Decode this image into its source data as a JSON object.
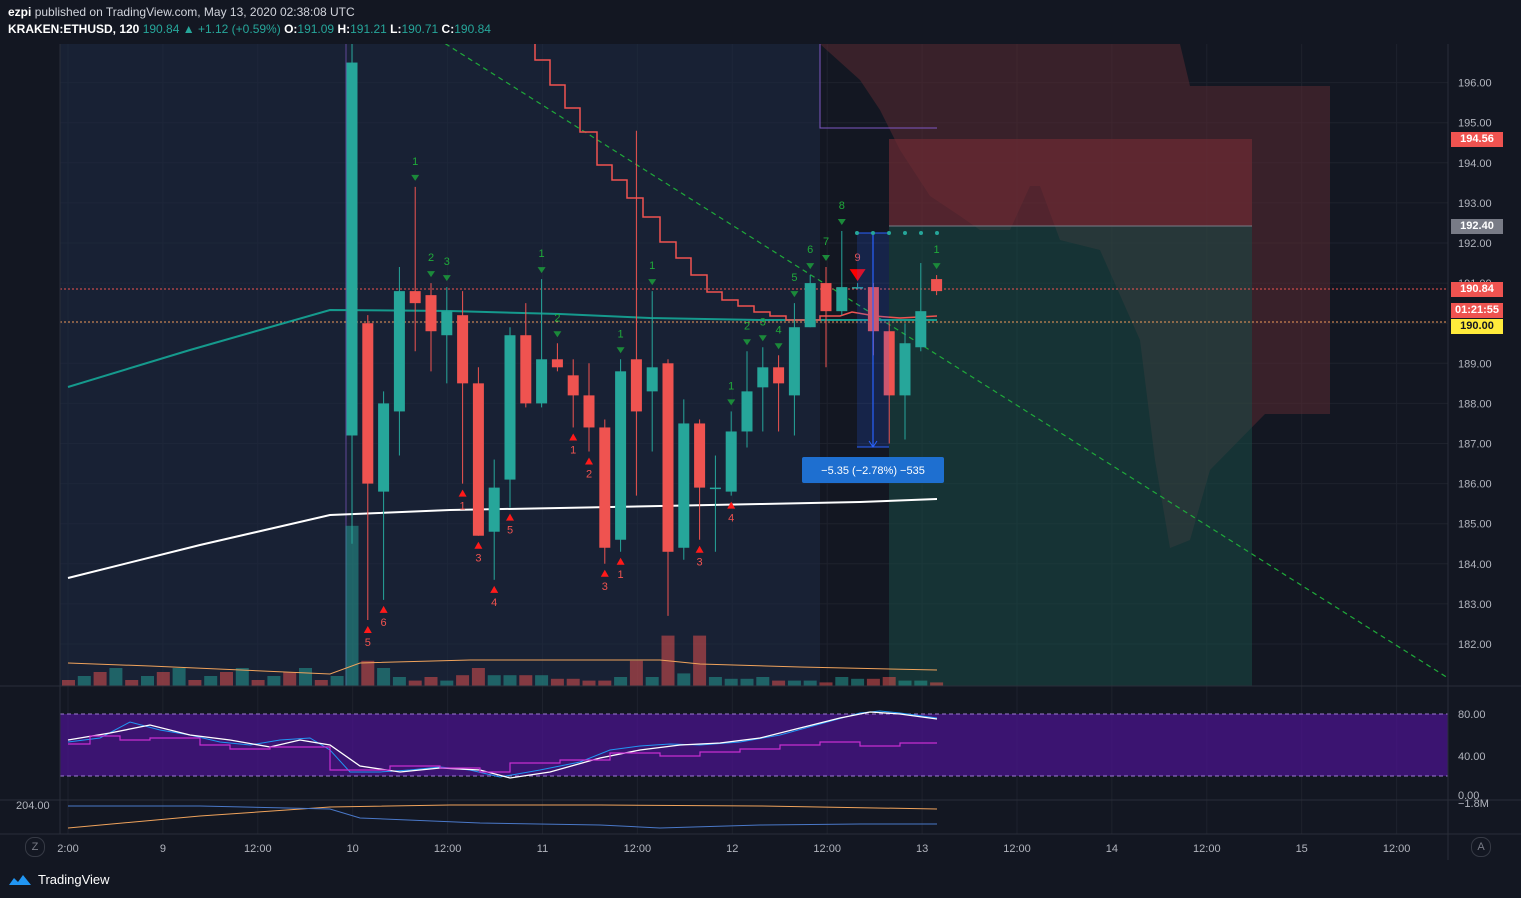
{
  "header": {
    "publisher": "ezpi",
    "published_text": "published on TradingView.com, May 13, 2020 02:38:08 UTC",
    "symbol": "KRAKEN:ETHUSD, 120",
    "last": "190.84",
    "change": "+1.12 (+0.59%)",
    "open_label": "O:",
    "open": "191.09",
    "high_label": "H:",
    "high": "191.21",
    "low_label": "L:",
    "low": "190.71",
    "close_label": "C:",
    "close": "190.84"
  },
  "price_tags": {
    "stop": "194.56",
    "target_line": "192.40",
    "last": "190.84",
    "countdown": "01:21:55",
    "level": "190.00"
  },
  "measure_label": "−5.35 (−2.78%) −535",
  "footer": {
    "brand": "TradingView",
    "left_btn": "Z",
    "right_btn": "A"
  },
  "colors": {
    "bull": "#26a69a",
    "bear": "#ef5350",
    "background": "#131722",
    "rsi_fill": "#4a148c"
  },
  "chart_data": [
    {
      "type": "candlestick",
      "symbol": "KRAKEN:ETHUSD",
      "interval": "120",
      "y_ticks": [
        "182.00",
        "183.00",
        "184.00",
        "185.00",
        "186.00",
        "187.00",
        "188.00",
        "189.00",
        "190.00",
        "191.00",
        "192.00",
        "193.00",
        "194.00",
        "195.00",
        "196.00"
      ],
      "x_ticks": [
        "2:00",
        "9",
        "12:00",
        "10",
        "12:00",
        "11",
        "12:00",
        "12",
        "12:00",
        "13",
        "12:00",
        "14",
        "12:00",
        "15",
        "12:00"
      ],
      "ylim": [
        181.0,
        196.9
      ],
      "candles": [
        {
          "o": 187.2,
          "h": 205.0,
          "l": 184.5,
          "c": 196.5
        },
        {
          "o": 190.0,
          "h": 190.2,
          "l": 182.6,
          "c": 186.0
        },
        {
          "o": 185.8,
          "h": 188.3,
          "l": 183.1,
          "c": 188.0
        },
        {
          "o": 187.8,
          "h": 191.4,
          "l": 186.7,
          "c": 190.8
        },
        {
          "o": 190.8,
          "h": 193.4,
          "l": 189.3,
          "c": 190.5
        },
        {
          "o": 190.7,
          "h": 191.0,
          "l": 188.8,
          "c": 189.8
        },
        {
          "o": 189.7,
          "h": 190.9,
          "l": 188.5,
          "c": 190.3
        },
        {
          "o": 190.2,
          "h": 190.8,
          "l": 186.0,
          "c": 188.5
        },
        {
          "o": 188.5,
          "h": 188.9,
          "l": 184.7,
          "c": 184.7
        },
        {
          "o": 184.8,
          "h": 186.6,
          "l": 183.6,
          "c": 185.9
        },
        {
          "o": 186.1,
          "h": 189.9,
          "l": 185.4,
          "c": 189.7
        },
        {
          "o": 189.7,
          "h": 190.5,
          "l": 187.9,
          "c": 188.0
        },
        {
          "o": 188.0,
          "h": 191.1,
          "l": 187.9,
          "c": 189.1
        },
        {
          "o": 189.1,
          "h": 189.5,
          "l": 188.8,
          "c": 188.9
        },
        {
          "o": 188.7,
          "h": 189.1,
          "l": 187.4,
          "c": 188.2
        },
        {
          "o": 188.2,
          "h": 189.0,
          "l": 186.8,
          "c": 187.4
        },
        {
          "o": 187.4,
          "h": 187.6,
          "l": 184.0,
          "c": 184.4
        },
        {
          "o": 184.6,
          "h": 189.1,
          "l": 184.3,
          "c": 188.8
        },
        {
          "o": 189.1,
          "h": 194.8,
          "l": 185.7,
          "c": 187.8
        },
        {
          "o": 188.3,
          "h": 190.8,
          "l": 186.8,
          "c": 188.9
        },
        {
          "o": 189.0,
          "h": 189.1,
          "l": 182.7,
          "c": 184.3
        },
        {
          "o": 184.4,
          "h": 188.1,
          "l": 184.1,
          "c": 187.5
        },
        {
          "o": 187.5,
          "h": 187.6,
          "l": 184.6,
          "c": 185.9
        },
        {
          "o": 185.9,
          "h": 186.7,
          "l": 184.3,
          "c": 185.9
        },
        {
          "o": 185.8,
          "h": 187.8,
          "l": 185.7,
          "c": 187.3
        },
        {
          "o": 187.3,
          "h": 189.3,
          "l": 186.9,
          "c": 188.3
        },
        {
          "o": 188.4,
          "h": 189.4,
          "l": 187.3,
          "c": 188.9
        },
        {
          "o": 188.9,
          "h": 189.2,
          "l": 187.3,
          "c": 188.5
        },
        {
          "o": 188.2,
          "h": 190.5,
          "l": 187.2,
          "c": 189.9
        },
        {
          "o": 189.9,
          "h": 191.2,
          "l": 189.9,
          "c": 191.0
        },
        {
          "o": 191.0,
          "h": 191.4,
          "l": 188.9,
          "c": 190.3
        },
        {
          "o": 190.3,
          "h": 192.3,
          "l": 190.2,
          "c": 190.9
        },
        {
          "o": 190.9,
          "h": 191.0,
          "l": 190.9,
          "c": 190.9
        },
        {
          "o": 190.9,
          "h": 191.0,
          "l": 189.2,
          "c": 189.8
        },
        {
          "o": 189.8,
          "h": 190.0,
          "l": 187.0,
          "c": 188.2
        },
        {
          "o": 188.2,
          "h": 190.0,
          "l": 187.1,
          "c": 189.5
        },
        {
          "o": 189.4,
          "h": 191.5,
          "l": 189.3,
          "c": 190.3
        },
        {
          "o": 191.1,
          "h": 191.2,
          "l": 190.7,
          "c": 190.8
        }
      ],
      "volume": [
        8.9,
        1.4,
        1.0,
        0.5,
        0.3,
        0.5,
        0.3,
        0.6,
        1.0,
        0.6,
        0.6,
        0.6,
        0.6,
        0.4,
        0.4,
        0.3,
        0.3,
        0.5,
        1.4,
        0.5,
        2.8,
        0.7,
        2.8,
        0.5,
        0.4,
        0.4,
        0.5,
        0.3,
        0.3,
        0.3,
        0.2,
        0.5,
        0.4,
        0.4,
        0.5,
        0.3,
        0.3,
        0.2
      ],
      "td_sequential_up": [
        "1",
        "2",
        "3",
        "1",
        "2",
        "1",
        "1",
        "1",
        "2",
        "3",
        "4",
        "5",
        "6",
        "7",
        "8",
        "9",
        "1"
      ],
      "td_sequential_down": [
        "5",
        "6",
        "1",
        "3",
        "4",
        "5",
        "1",
        "2",
        "3",
        "1",
        "3",
        "4"
      ],
      "measurement": {
        "from": 192.2,
        "to": 186.9,
        "change": "−5.35 (−2.78%) −535"
      },
      "short_position": {
        "entry": 192.4,
        "stop": 194.56,
        "target": 181.0
      }
    },
    {
      "type": "line",
      "name": "RSI",
      "y_ticks": [
        "80.00",
        "40.00"
      ],
      "bands": [
        20,
        80
      ]
    },
    {
      "type": "line",
      "y_ticks": [
        "0.00",
        "204.00",
        "−1.8M"
      ]
    }
  ]
}
